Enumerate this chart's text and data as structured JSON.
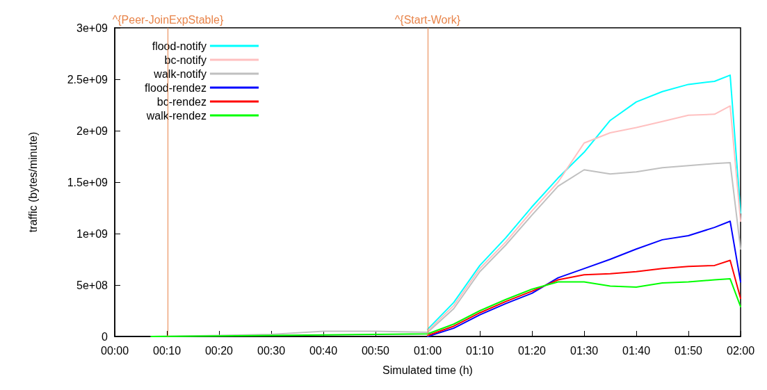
{
  "chart_data": {
    "type": "line",
    "xlabel": "Simulated time (h)",
    "ylabel": "traffic (bytes/minute)",
    "x": [
      0.1167,
      0.3333,
      0.5,
      0.6667,
      0.8333,
      1.0,
      1.0833,
      1.1667,
      1.25,
      1.3333,
      1.4167,
      1.5,
      1.5833,
      1.6667,
      1.75,
      1.8333,
      1.9167,
      1.9667,
      2.0
    ],
    "series": [
      {
        "name": "flood-notify",
        "color": "#00ffff",
        "values": [
          null,
          null,
          null,
          null,
          null,
          70000000,
          330000000,
          690000000,
          960000000,
          1260000000,
          1540000000,
          1790000000,
          2100000000,
          2280000000,
          2380000000,
          2450000000,
          2480000000,
          2540000000,
          1200000000
        ]
      },
      {
        "name": "bc-notify",
        "color": "#ffc0c0",
        "values": [
          null,
          null,
          null,
          null,
          null,
          55000000,
          300000000,
          660000000,
          920000000,
          1220000000,
          1500000000,
          1880000000,
          1980000000,
          2030000000,
          2090000000,
          2150000000,
          2160000000,
          2240000000,
          1120000000
        ]
      },
      {
        "name": "walk-notify",
        "color": "#c0c0c0",
        "values": [
          0,
          10000000,
          20000000,
          50000000,
          50000000,
          40000000,
          270000000,
          630000000,
          890000000,
          1180000000,
          1460000000,
          1620000000,
          1580000000,
          1600000000,
          1640000000,
          1660000000,
          1680000000,
          1690000000,
          850000000
        ]
      },
      {
        "name": "flood-rendez",
        "color": "#0000ff",
        "values": [
          null,
          null,
          null,
          null,
          null,
          0,
          80000000,
          210000000,
          320000000,
          420000000,
          570000000,
          660000000,
          750000000,
          850000000,
          940000000,
          980000000,
          1060000000,
          1120000000,
          530000000
        ]
      },
      {
        "name": "bc-rendez",
        "color": "#ff0000",
        "values": [
          null,
          null,
          null,
          null,
          null,
          10000000,
          100000000,
          230000000,
          340000000,
          440000000,
          550000000,
          600000000,
          610000000,
          630000000,
          660000000,
          680000000,
          690000000,
          740000000,
          370000000
        ]
      },
      {
        "name": "walk-rendez",
        "color": "#00ff00",
        "values": [
          0,
          5000000,
          10000000,
          15000000,
          20000000,
          25000000,
          120000000,
          250000000,
          360000000,
          460000000,
          530000000,
          530000000,
          490000000,
          480000000,
          520000000,
          530000000,
          550000000,
          560000000,
          290000000
        ]
      }
    ],
    "xlim": [
      0,
      2
    ],
    "xticks": [
      {
        "value": 0,
        "label": "00:00"
      },
      {
        "value": 0.1667,
        "label": "00:10"
      },
      {
        "value": 0.3333,
        "label": "00:20"
      },
      {
        "value": 0.5,
        "label": "00:30"
      },
      {
        "value": 0.6667,
        "label": "00:40"
      },
      {
        "value": 0.8333,
        "label": "00:50"
      },
      {
        "value": 1,
        "label": "01:00"
      },
      {
        "value": 1.1667,
        "label": "01:10"
      },
      {
        "value": 1.3333,
        "label": "01:20"
      },
      {
        "value": 1.5,
        "label": "01:30"
      },
      {
        "value": 1.6667,
        "label": "01:40"
      },
      {
        "value": 1.8333,
        "label": "01:50"
      },
      {
        "value": 2,
        "label": "02:00"
      }
    ],
    "ylim": [
      0,
      3000000000
    ],
    "yticks": [
      0,
      {
        "value": 500000000,
        "label": "5e+08"
      },
      {
        "value": 1000000000,
        "label": "1e+09"
      },
      {
        "value": 1500000000,
        "label": "1.5e+09"
      },
      {
        "value": 2000000000,
        "label": "2e+09"
      },
      {
        "value": 2500000000,
        "label": "2.5e+09"
      },
      {
        "value": 3000000000,
        "label": "3e+09"
      }
    ],
    "ref_lines": [
      {
        "axis": "x",
        "value": 0.1667,
        "label": "^{Peer-JoinExpStable}",
        "color": "#e8844a"
      },
      {
        "axis": "x",
        "value": 1,
        "label": "^{Start-Work}",
        "color": "#e8844a"
      }
    ],
    "grid": false,
    "legend": "top left",
    "marker": "none",
    "line_style": "solid"
  }
}
